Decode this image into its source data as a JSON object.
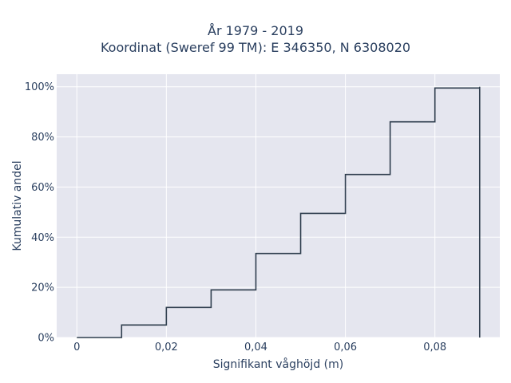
{
  "chart_data": {
    "type": "line",
    "step": true,
    "title": "År 1979 - 2019",
    "subtitle": "Koordinat (Sweref 99 TM): E 346350, N 6308020",
    "xlabel": "Signifikant våghöjd (m)",
    "ylabel": "Kumulativ andel",
    "xlim": [
      -0.0045,
      0.0945
    ],
    "ylim": [
      0,
      1.05
    ],
    "xticks": [
      0,
      0.02,
      0.04,
      0.06,
      0.08
    ],
    "xtick_labels": [
      "0",
      "0,02",
      "0,04",
      "0,06",
      "0,08"
    ],
    "yticks": [
      0,
      0.2,
      0.4,
      0.6,
      0.8,
      1.0
    ],
    "ytick_labels": [
      "0%",
      "20%",
      "40%",
      "60%",
      "80%",
      "100%"
    ],
    "grid": true,
    "series": [
      {
        "x": [
          0,
          0.01,
          0.02,
          0.03,
          0.04,
          0.05,
          0.06,
          0.07,
          0.08,
          0.09
        ],
        "y": [
          0.0,
          0.05,
          0.12,
          0.19,
          0.335,
          0.495,
          0.65,
          0.86,
          0.995,
          1.0
        ],
        "color": "#2f3e4e"
      }
    ],
    "background": "#e5e6ef"
  }
}
